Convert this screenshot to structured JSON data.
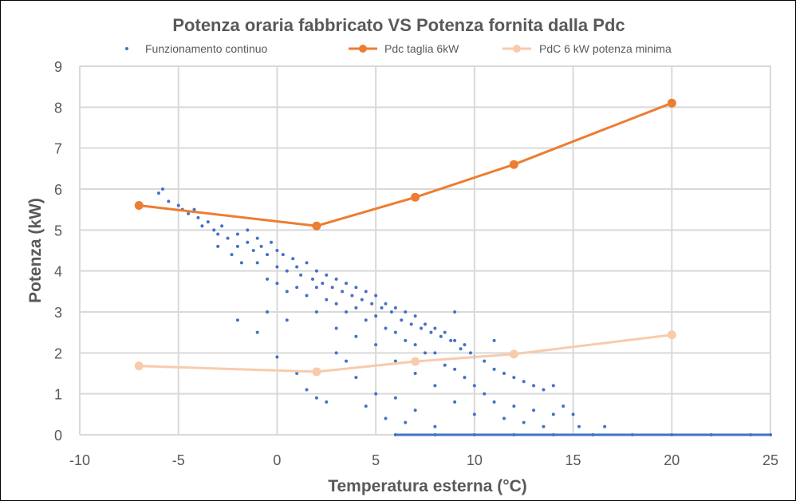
{
  "chart_data": {
    "type": "scatter",
    "title": "Potenza oraria fabbricato VS Potenza fornita dalla Pdc",
    "xlabel": "Temperatura esterna (°C)",
    "ylabel": "Potenza (kW)",
    "xlim": [
      -10,
      25
    ],
    "ylim": [
      0,
      9
    ],
    "xticks": [
      -10,
      -5,
      0,
      5,
      10,
      15,
      20,
      25
    ],
    "yticks": [
      0,
      1,
      2,
      3,
      4,
      5,
      6,
      7,
      8,
      9
    ],
    "grid": true,
    "legend": "top",
    "series": [
      {
        "name": "Funzionamento continuo",
        "type": "scatter",
        "color": "#4472C4",
        "points": [
          [
            -6,
            5.9
          ],
          [
            -5.8,
            6.0
          ],
          [
            -5.5,
            5.7
          ],
          [
            -5,
            5.6
          ],
          [
            -4.8,
            5.5
          ],
          [
            -4.5,
            5.4
          ],
          [
            -4.2,
            5.5
          ],
          [
            -4,
            5.3
          ],
          [
            -3.8,
            5.1
          ],
          [
            -3.5,
            5.2
          ],
          [
            -3.2,
            5.0
          ],
          [
            -3,
            4.9
          ],
          [
            -3,
            4.6
          ],
          [
            -2.8,
            5.1
          ],
          [
            -2.5,
            4.8
          ],
          [
            -2.3,
            4.4
          ],
          [
            -2,
            4.9
          ],
          [
            -2,
            4.6
          ],
          [
            -1.8,
            4.2
          ],
          [
            -1.5,
            4.7
          ],
          [
            -1.5,
            5.0
          ],
          [
            -1.2,
            4.5
          ],
          [
            -1,
            4.8
          ],
          [
            -1,
            4.2
          ],
          [
            -0.8,
            4.6
          ],
          [
            -0.5,
            4.4
          ],
          [
            -0.5,
            3.8
          ],
          [
            -0.3,
            4.7
          ],
          [
            0,
            4.5
          ],
          [
            0,
            4.1
          ],
          [
            0,
            3.7
          ],
          [
            0.3,
            4.4
          ],
          [
            0.5,
            4.0
          ],
          [
            0.5,
            3.5
          ],
          [
            0.8,
            4.3
          ],
          [
            1,
            4.1
          ],
          [
            1,
            3.6
          ],
          [
            1.2,
            3.9
          ],
          [
            1.5,
            4.2
          ],
          [
            1.5,
            3.4
          ],
          [
            1.8,
            3.8
          ],
          [
            2,
            4.0
          ],
          [
            2,
            3.6
          ],
          [
            2,
            3.0
          ],
          [
            2.3,
            3.7
          ],
          [
            2.5,
            3.9
          ],
          [
            2.5,
            3.3
          ],
          [
            2.8,
            3.6
          ],
          [
            3,
            3.8
          ],
          [
            3,
            3.2
          ],
          [
            3,
            2.6
          ],
          [
            3.3,
            3.5
          ],
          [
            3.5,
            3.7
          ],
          [
            3.5,
            3.0
          ],
          [
            3.8,
            3.4
          ],
          [
            4,
            3.6
          ],
          [
            4,
            3.1
          ],
          [
            4,
            2.4
          ],
          [
            4.3,
            3.3
          ],
          [
            4.5,
            3.5
          ],
          [
            4.5,
            2.8
          ],
          [
            4.8,
            3.2
          ],
          [
            5,
            3.4
          ],
          [
            5,
            2.9
          ],
          [
            5,
            2.2
          ],
          [
            5.3,
            3.1
          ],
          [
            5.5,
            3.2
          ],
          [
            5.5,
            2.6
          ],
          [
            5.8,
            3.0
          ],
          [
            6,
            3.1
          ],
          [
            6,
            2.5
          ],
          [
            6,
            1.8
          ],
          [
            6.3,
            2.8
          ],
          [
            6.5,
            3.0
          ],
          [
            6.5,
            2.3
          ],
          [
            6.8,
            2.7
          ],
          [
            7,
            2.9
          ],
          [
            7,
            2.2
          ],
          [
            7,
            1.5
          ],
          [
            7.3,
            2.6
          ],
          [
            7.5,
            2.7
          ],
          [
            7.5,
            2.0
          ],
          [
            7.8,
            2.5
          ],
          [
            8,
            2.6
          ],
          [
            8,
            2.0
          ],
          [
            8,
            1.2
          ],
          [
            8.3,
            2.4
          ],
          [
            8.5,
            2.5
          ],
          [
            8.5,
            1.7
          ],
          [
            8.8,
            2.3
          ],
          [
            9,
            2.3
          ],
          [
            9,
            1.6
          ],
          [
            9,
            0.8
          ],
          [
            9.3,
            2.1
          ],
          [
            9.5,
            2.2
          ],
          [
            9.5,
            1.4
          ],
          [
            9.8,
            2.0
          ],
          [
            10,
            1.9
          ],
          [
            10,
            1.2
          ],
          [
            10,
            0.5
          ],
          [
            10.5,
            1.8
          ],
          [
            10.5,
            1.0
          ],
          [
            11,
            1.6
          ],
          [
            11,
            0.8
          ],
          [
            11.5,
            1.5
          ],
          [
            11.5,
            0.4
          ],
          [
            12,
            1.4
          ],
          [
            12,
            0.7
          ],
          [
            12.5,
            1.3
          ],
          [
            12.5,
            0.3
          ],
          [
            13,
            1.2
          ],
          [
            13,
            0.6
          ],
          [
            13.5,
            1.1
          ],
          [
            13.5,
            0.2
          ],
          [
            14,
            1.2
          ],
          [
            14,
            0.5
          ],
          [
            14.5,
            0.7
          ],
          [
            15,
            0.5
          ],
          [
            15.3,
            0.2
          ],
          [
            16.6,
            0.2
          ],
          [
            -2,
            2.8
          ],
          [
            -1,
            2.5
          ],
          [
            0,
            1.9
          ],
          [
            1,
            1.5
          ],
          [
            1.5,
            1.1
          ],
          [
            2,
            0.9
          ],
          [
            2.5,
            0.8
          ],
          [
            3,
            2.0
          ],
          [
            4,
            1.4
          ],
          [
            4.5,
            0.7
          ],
          [
            5,
            1.0
          ],
          [
            5.5,
            0.4
          ],
          [
            6,
            0.9
          ],
          [
            6.5,
            0.3
          ],
          [
            7,
            0.6
          ],
          [
            8,
            0.2
          ],
          [
            -0.5,
            3.0
          ],
          [
            0.5,
            2.8
          ],
          [
            3.5,
            1.8
          ],
          [
            9,
            3.0
          ],
          [
            11,
            2.3
          ],
          [
            6,
            0
          ],
          [
            8,
            0
          ],
          [
            10,
            0
          ],
          [
            12,
            0
          ],
          [
            14,
            0
          ],
          [
            16,
            0
          ],
          [
            18,
            0
          ],
          [
            20,
            0
          ],
          [
            22,
            0
          ],
          [
            24,
            0
          ],
          [
            25,
            0
          ]
        ]
      },
      {
        "name": "Pdc taglia 6kW",
        "type": "line",
        "color": "#ED7D31",
        "points": [
          [
            -7,
            5.6
          ],
          [
            2,
            5.1
          ],
          [
            7,
            5.8
          ],
          [
            12,
            6.6
          ],
          [
            20,
            8.1
          ]
        ]
      },
      {
        "name": "PdC 6 kW potenza minima",
        "type": "line",
        "color": "#F8CBAD",
        "points": [
          [
            -7,
            1.68
          ],
          [
            2,
            1.54
          ],
          [
            7,
            1.79
          ],
          [
            12,
            1.97
          ],
          [
            20,
            2.44
          ]
        ]
      }
    ]
  }
}
